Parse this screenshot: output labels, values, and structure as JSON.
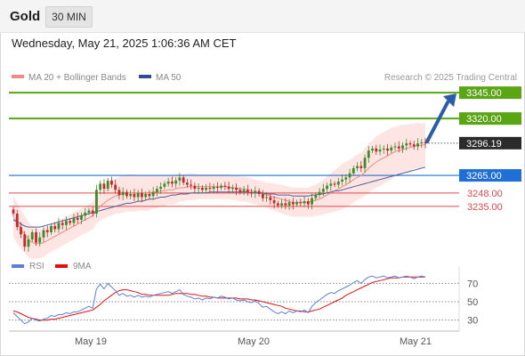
{
  "header": {
    "title": "Gold",
    "timeframe": "30 MIN"
  },
  "timestamp": "Wednesday, May 21, 2025 1:06:36 AM CET",
  "legend": [
    {
      "label": "MA 20 + Bollinger Bands",
      "color": "#f08a80"
    },
    {
      "label": "MA 50",
      "color": "#2e4f8f"
    }
  ],
  "credit": "Research © 2025 Trading Central",
  "rsi_legend": [
    {
      "label": "RSI",
      "color": "#5b7fd6"
    },
    {
      "label": "9MA",
      "color": "#e01010"
    }
  ],
  "levels": {
    "resistance2": {
      "label": "3345.00",
      "value": 3345,
      "color": "#5aa514"
    },
    "resistance1": {
      "label": "3320.00",
      "value": 3320,
      "color": "#5aa514"
    },
    "last_price": {
      "label": "3296.19",
      "value": 3296.19,
      "color": "#2b2b2b"
    },
    "pivot": {
      "label": "3265.00",
      "value": 3265,
      "color": "#1f6fd6"
    },
    "support1": {
      "label": "3248.00",
      "value": 3248,
      "color": "#e04a4a"
    },
    "support2": {
      "label": "3235.00",
      "value": 3235,
      "color": "#e04a4a"
    }
  },
  "x_ticks": [
    "May 19",
    "May 20",
    "May 21"
  ],
  "rsi_ticks": [
    "70",
    "50",
    "30"
  ],
  "chart_data": {
    "type": "candlestick",
    "price_range": [
      3185,
      3352
    ],
    "rsi_range": [
      20,
      82
    ],
    "rsi_levels": [
      70,
      50,
      30
    ],
    "x_ticks": [
      "May 19",
      "May 20",
      "May 21"
    ],
    "closes": [
      3228,
      3215,
      3208,
      3196,
      3203,
      3210,
      3200,
      3205,
      3212,
      3210,
      3216,
      3213,
      3219,
      3217,
      3221,
      3219,
      3224,
      3222,
      3226,
      3229,
      3231,
      3228,
      3251,
      3257,
      3252,
      3260,
      3256,
      3251,
      3246,
      3249,
      3245,
      3247,
      3244,
      3248,
      3244,
      3247,
      3245,
      3249,
      3252,
      3254,
      3257,
      3259,
      3257,
      3260,
      3263,
      3258,
      3256,
      3255,
      3252,
      3253,
      3251,
      3253,
      3252,
      3254,
      3253,
      3255,
      3254,
      3252,
      3253,
      3251,
      3249,
      3251,
      3249,
      3248,
      3250,
      3247,
      3243,
      3244,
      3241,
      3238,
      3236,
      3238,
      3236,
      3239,
      3237,
      3239,
      3238,
      3240,
      3237,
      3243,
      3246,
      3249,
      3252,
      3255,
      3257,
      3256,
      3259,
      3261,
      3263,
      3267,
      3272,
      3274,
      3272,
      3282,
      3289,
      3291,
      3288,
      3290,
      3291,
      3289,
      3292,
      3293,
      3291,
      3294,
      3296,
      3295,
      3293,
      3296,
      3297,
      3296
    ],
    "ma20": [
      3225,
      3219,
      3213,
      3208,
      3203,
      3200,
      3199,
      3199,
      3200,
      3202,
      3204,
      3206,
      3208,
      3210,
      3212,
      3214,
      3216,
      3218,
      3220,
      3222,
      3224,
      3226,
      3231,
      3235,
      3238,
      3241,
      3243,
      3245,
      3246,
      3247,
      3248,
      3248,
      3248,
      3248,
      3248,
      3248,
      3248,
      3249,
      3249,
      3250,
      3250,
      3251,
      3251,
      3252,
      3253,
      3253,
      3254,
      3254,
      3254,
      3254,
      3254,
      3254,
      3254,
      3254,
      3254,
      3254,
      3254,
      3254,
      3253,
      3253,
      3252,
      3252,
      3251,
      3250,
      3249,
      3248,
      3247,
      3246,
      3245,
      3244,
      3243,
      3242,
      3241,
      3240,
      3239,
      3239,
      3239,
      3239,
      3239,
      3240,
      3241,
      3242,
      3244,
      3246,
      3248,
      3250,
      3252,
      3254,
      3256,
      3258,
      3261,
      3263,
      3265,
      3268,
      3272,
      3275,
      3278,
      3280,
      3282,
      3284,
      3286,
      3288,
      3289,
      3290,
      3291,
      3292,
      3293,
      3294,
      3294,
      3295
    ],
    "ma50": [
      3222,
      3220,
      3218,
      3216,
      3215,
      3215,
      3215,
      3215,
      3216,
      3217,
      3218,
      3219,
      3220,
      3221,
      3222,
      3223,
      3224,
      3225,
      3226,
      3227,
      3228,
      3229,
      3230,
      3231,
      3232,
      3233,
      3234,
      3235,
      3236,
      3237,
      3238,
      3238,
      3239,
      3240,
      3240,
      3241,
      3242,
      3242,
      3243,
      3244,
      3244,
      3245,
      3246,
      3246,
      3247,
      3247,
      3247,
      3248,
      3248,
      3248,
      3248,
      3248,
      3249,
      3249,
      3249,
      3249,
      3249,
      3249,
      3249,
      3249,
      3249,
      3249,
      3249,
      3248,
      3248,
      3248,
      3248,
      3247,
      3247,
      3247,
      3246,
      3246,
      3246,
      3246,
      3245,
      3245,
      3245,
      3245,
      3245,
      3246,
      3246,
      3247,
      3247,
      3248,
      3249,
      3250,
      3250,
      3251,
      3252,
      3253,
      3254,
      3255,
      3256,
      3257,
      3258,
      3259,
      3260,
      3261,
      3262,
      3263,
      3264,
      3265,
      3266,
      3267,
      3268,
      3269,
      3270,
      3271,
      3272,
      3273
    ],
    "bb_width": [
      20,
      20,
      19,
      18,
      17,
      16,
      15,
      14,
      14,
      13,
      13,
      13,
      13,
      13,
      13,
      13,
      13,
      13,
      13,
      13,
      13,
      13,
      13,
      14,
      15,
      16,
      17,
      17,
      18,
      18,
      18,
      18,
      18,
      17,
      17,
      17,
      17,
      16,
      16,
      15,
      15,
      14,
      14,
      14,
      13,
      13,
      13,
      13,
      13,
      12,
      12,
      12,
      12,
      12,
      12,
      12,
      12,
      12,
      12,
      12,
      12,
      12,
      12,
      12,
      12,
      12,
      12,
      12,
      13,
      13,
      13,
      14,
      14,
      14,
      14,
      14,
      14,
      14,
      14,
      15,
      15,
      16,
      17,
      18,
      19,
      20,
      21,
      22,
      22,
      22,
      22,
      22,
      22,
      23,
      24,
      24,
      25,
      25,
      25,
      25,
      25,
      24,
      24,
      24,
      23,
      23,
      22,
      22,
      21,
      21
    ],
    "rsi": [
      38,
      34,
      30,
      26,
      28,
      32,
      30,
      29,
      31,
      32,
      35,
      34,
      36,
      36,
      38,
      37,
      39,
      39,
      41,
      43,
      45,
      43,
      64,
      69,
      64,
      70,
      66,
      62,
      57,
      59,
      56,
      57,
      55,
      57,
      55,
      56,
      55,
      57,
      58,
      59,
      60,
      61,
      59,
      61,
      63,
      58,
      56,
      55,
      53,
      54,
      52,
      54,
      53,
      55,
      54,
      56,
      55,
      53,
      54,
      52,
      51,
      52,
      50,
      49,
      51,
      48,
      44,
      45,
      42,
      39,
      37,
      39,
      37,
      40,
      38,
      40,
      39,
      41,
      38,
      45,
      49,
      52,
      55,
      58,
      60,
      59,
      62,
      64,
      66,
      68,
      71,
      73,
      70,
      74,
      77,
      78,
      76,
      77,
      78,
      76,
      77,
      78,
      76,
      77,
      78,
      77,
      75,
      77,
      78,
      77
    ],
    "rsi_ma": [
      40,
      39,
      37,
      35,
      33,
      32,
      31,
      30,
      30,
      30,
      31,
      31,
      32,
      33,
      34,
      35,
      36,
      37,
      38,
      39,
      40,
      41,
      44,
      47,
      51,
      54,
      57,
      60,
      62,
      63,
      63,
      62,
      61,
      60,
      58,
      58,
      57,
      57,
      57,
      57,
      57,
      57,
      58,
      59,
      59,
      59,
      59,
      58,
      58,
      57,
      56,
      56,
      55,
      55,
      54,
      54,
      54,
      54,
      54,
      54,
      53,
      53,
      53,
      52,
      52,
      51,
      50,
      49,
      48,
      47,
      46,
      45,
      43,
      42,
      41,
      40,
      40,
      39,
      39,
      40,
      41,
      42,
      44,
      46,
      48,
      50,
      52,
      54,
      57,
      59,
      61,
      63,
      65,
      67,
      69,
      71,
      72,
      73,
      74,
      75,
      76,
      76,
      76,
      77,
      77,
      77,
      77,
      77,
      77,
      77
    ]
  }
}
